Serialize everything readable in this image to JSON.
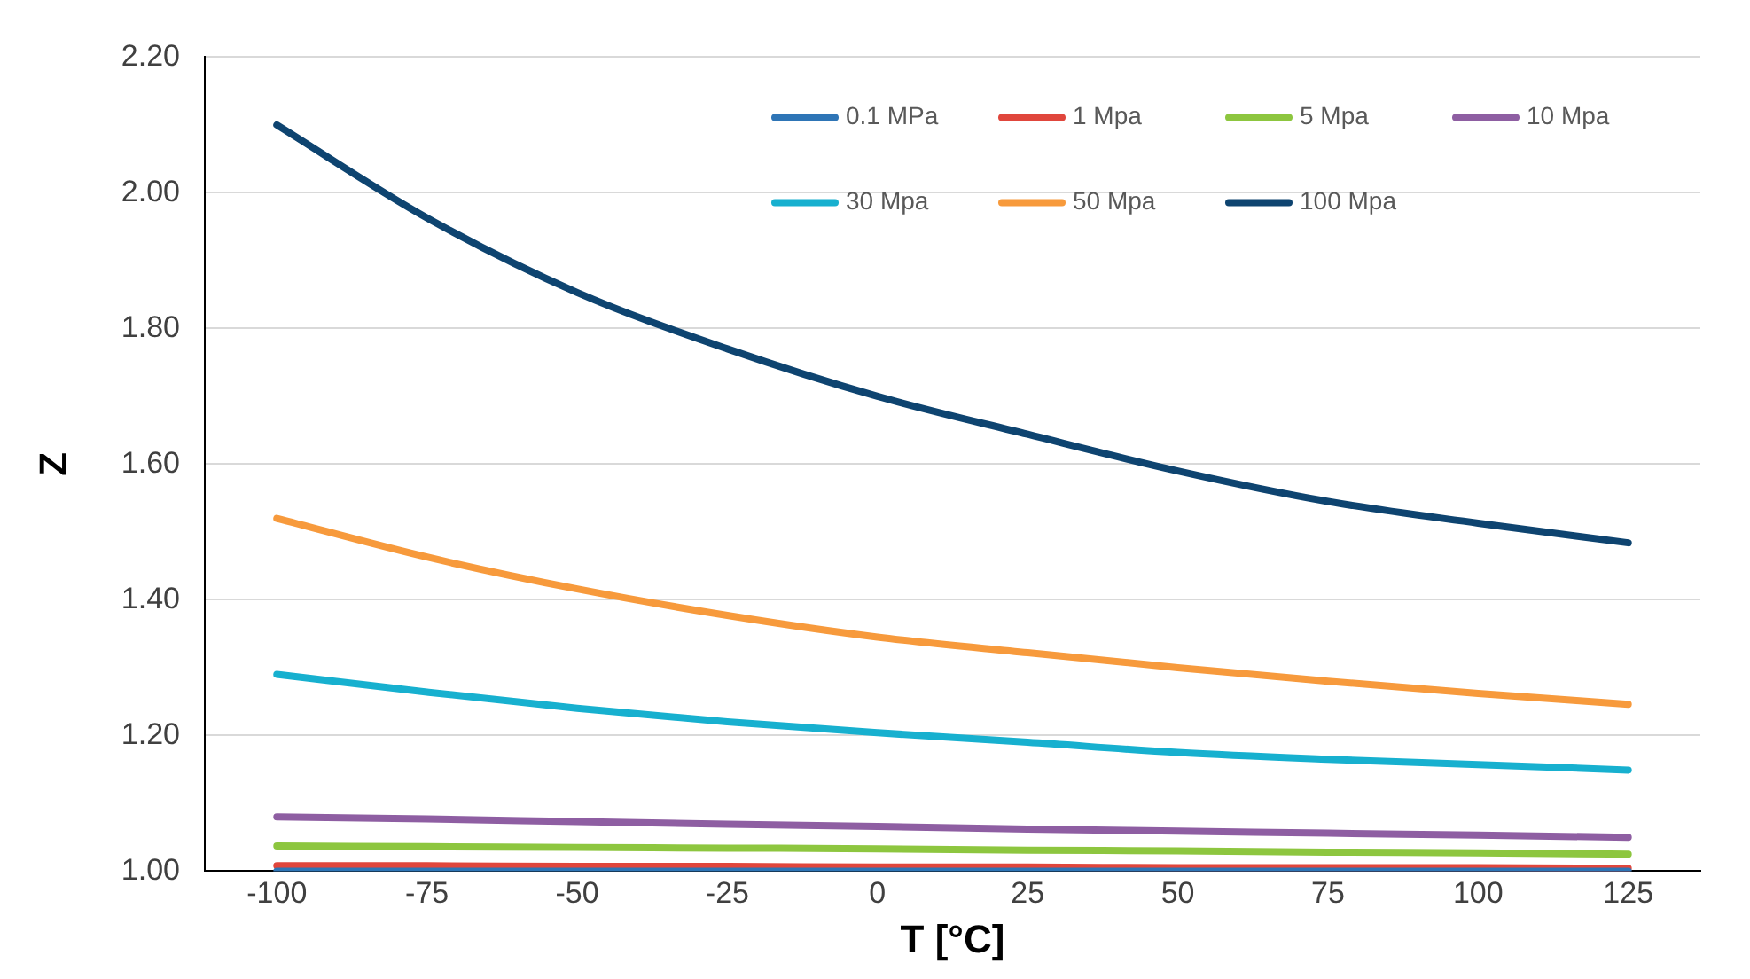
{
  "chart_data": {
    "type": "line",
    "xlabel": "T [°C]",
    "ylabel": "Z",
    "x": [
      -100,
      -75,
      -50,
      -25,
      0,
      25,
      50,
      75,
      100,
      125
    ],
    "series": [
      {
        "name": "0.1 MPa",
        "color": "#2e75b6",
        "values": [
          1.0,
          1.0,
          1.0,
          1.0,
          1.0,
          1.0,
          1.0,
          1.0,
          1.0,
          1.0
        ]
      },
      {
        "name": "1 Mpa",
        "color": "#e0463c",
        "values": [
          1.008,
          1.008,
          1.007,
          1.007,
          1.006,
          1.006,
          1.005,
          1.005,
          1.005,
          1.004
        ]
      },
      {
        "name": "5 Mpa",
        "color": "#8dc63f",
        "values": [
          1.037,
          1.036,
          1.035,
          1.034,
          1.033,
          1.031,
          1.03,
          1.028,
          1.027,
          1.025
        ]
      },
      {
        "name": "10 Mpa",
        "color": "#8e5ea2",
        "values": [
          1.08,
          1.077,
          1.073,
          1.069,
          1.066,
          1.062,
          1.059,
          1.056,
          1.053,
          1.05
        ]
      },
      {
        "name": "30 Mpa",
        "color": "#17b0cf",
        "values": [
          1.29,
          1.264,
          1.24,
          1.22,
          1.204,
          1.19,
          1.175,
          1.165,
          1.157,
          1.149
        ]
      },
      {
        "name": "50 Mpa",
        "color": "#f79a3c",
        "values": [
          1.52,
          1.463,
          1.416,
          1.377,
          1.345,
          1.322,
          1.3,
          1.28,
          1.262,
          1.246
        ]
      },
      {
        "name": "100 Mpa",
        "color": "#0e4470",
        "values": [
          2.1,
          1.963,
          1.853,
          1.77,
          1.7,
          1.644,
          1.59,
          1.545,
          1.513,
          1.484
        ]
      }
    ],
    "xlim": [
      -112,
      137
    ],
    "xticks": [
      -100,
      -75,
      -50,
      -25,
      0,
      25,
      50,
      75,
      100,
      125
    ],
    "ylim": [
      1.0,
      2.2
    ],
    "yticks": [
      {
        "value": 1.0,
        "label": "1.00"
      },
      {
        "value": 1.2,
        "label": "1.20"
      },
      {
        "value": 1.4,
        "label": "1.40"
      },
      {
        "value": 1.6,
        "label": "1.60"
      },
      {
        "value": 1.8,
        "label": "1.80"
      },
      {
        "value": 2.0,
        "label": "2.00"
      },
      {
        "value": 2.2,
        "label": "2.20"
      }
    ],
    "grid": "y",
    "legend": "top right",
    "marker": "none",
    "line_style": "solid"
  }
}
